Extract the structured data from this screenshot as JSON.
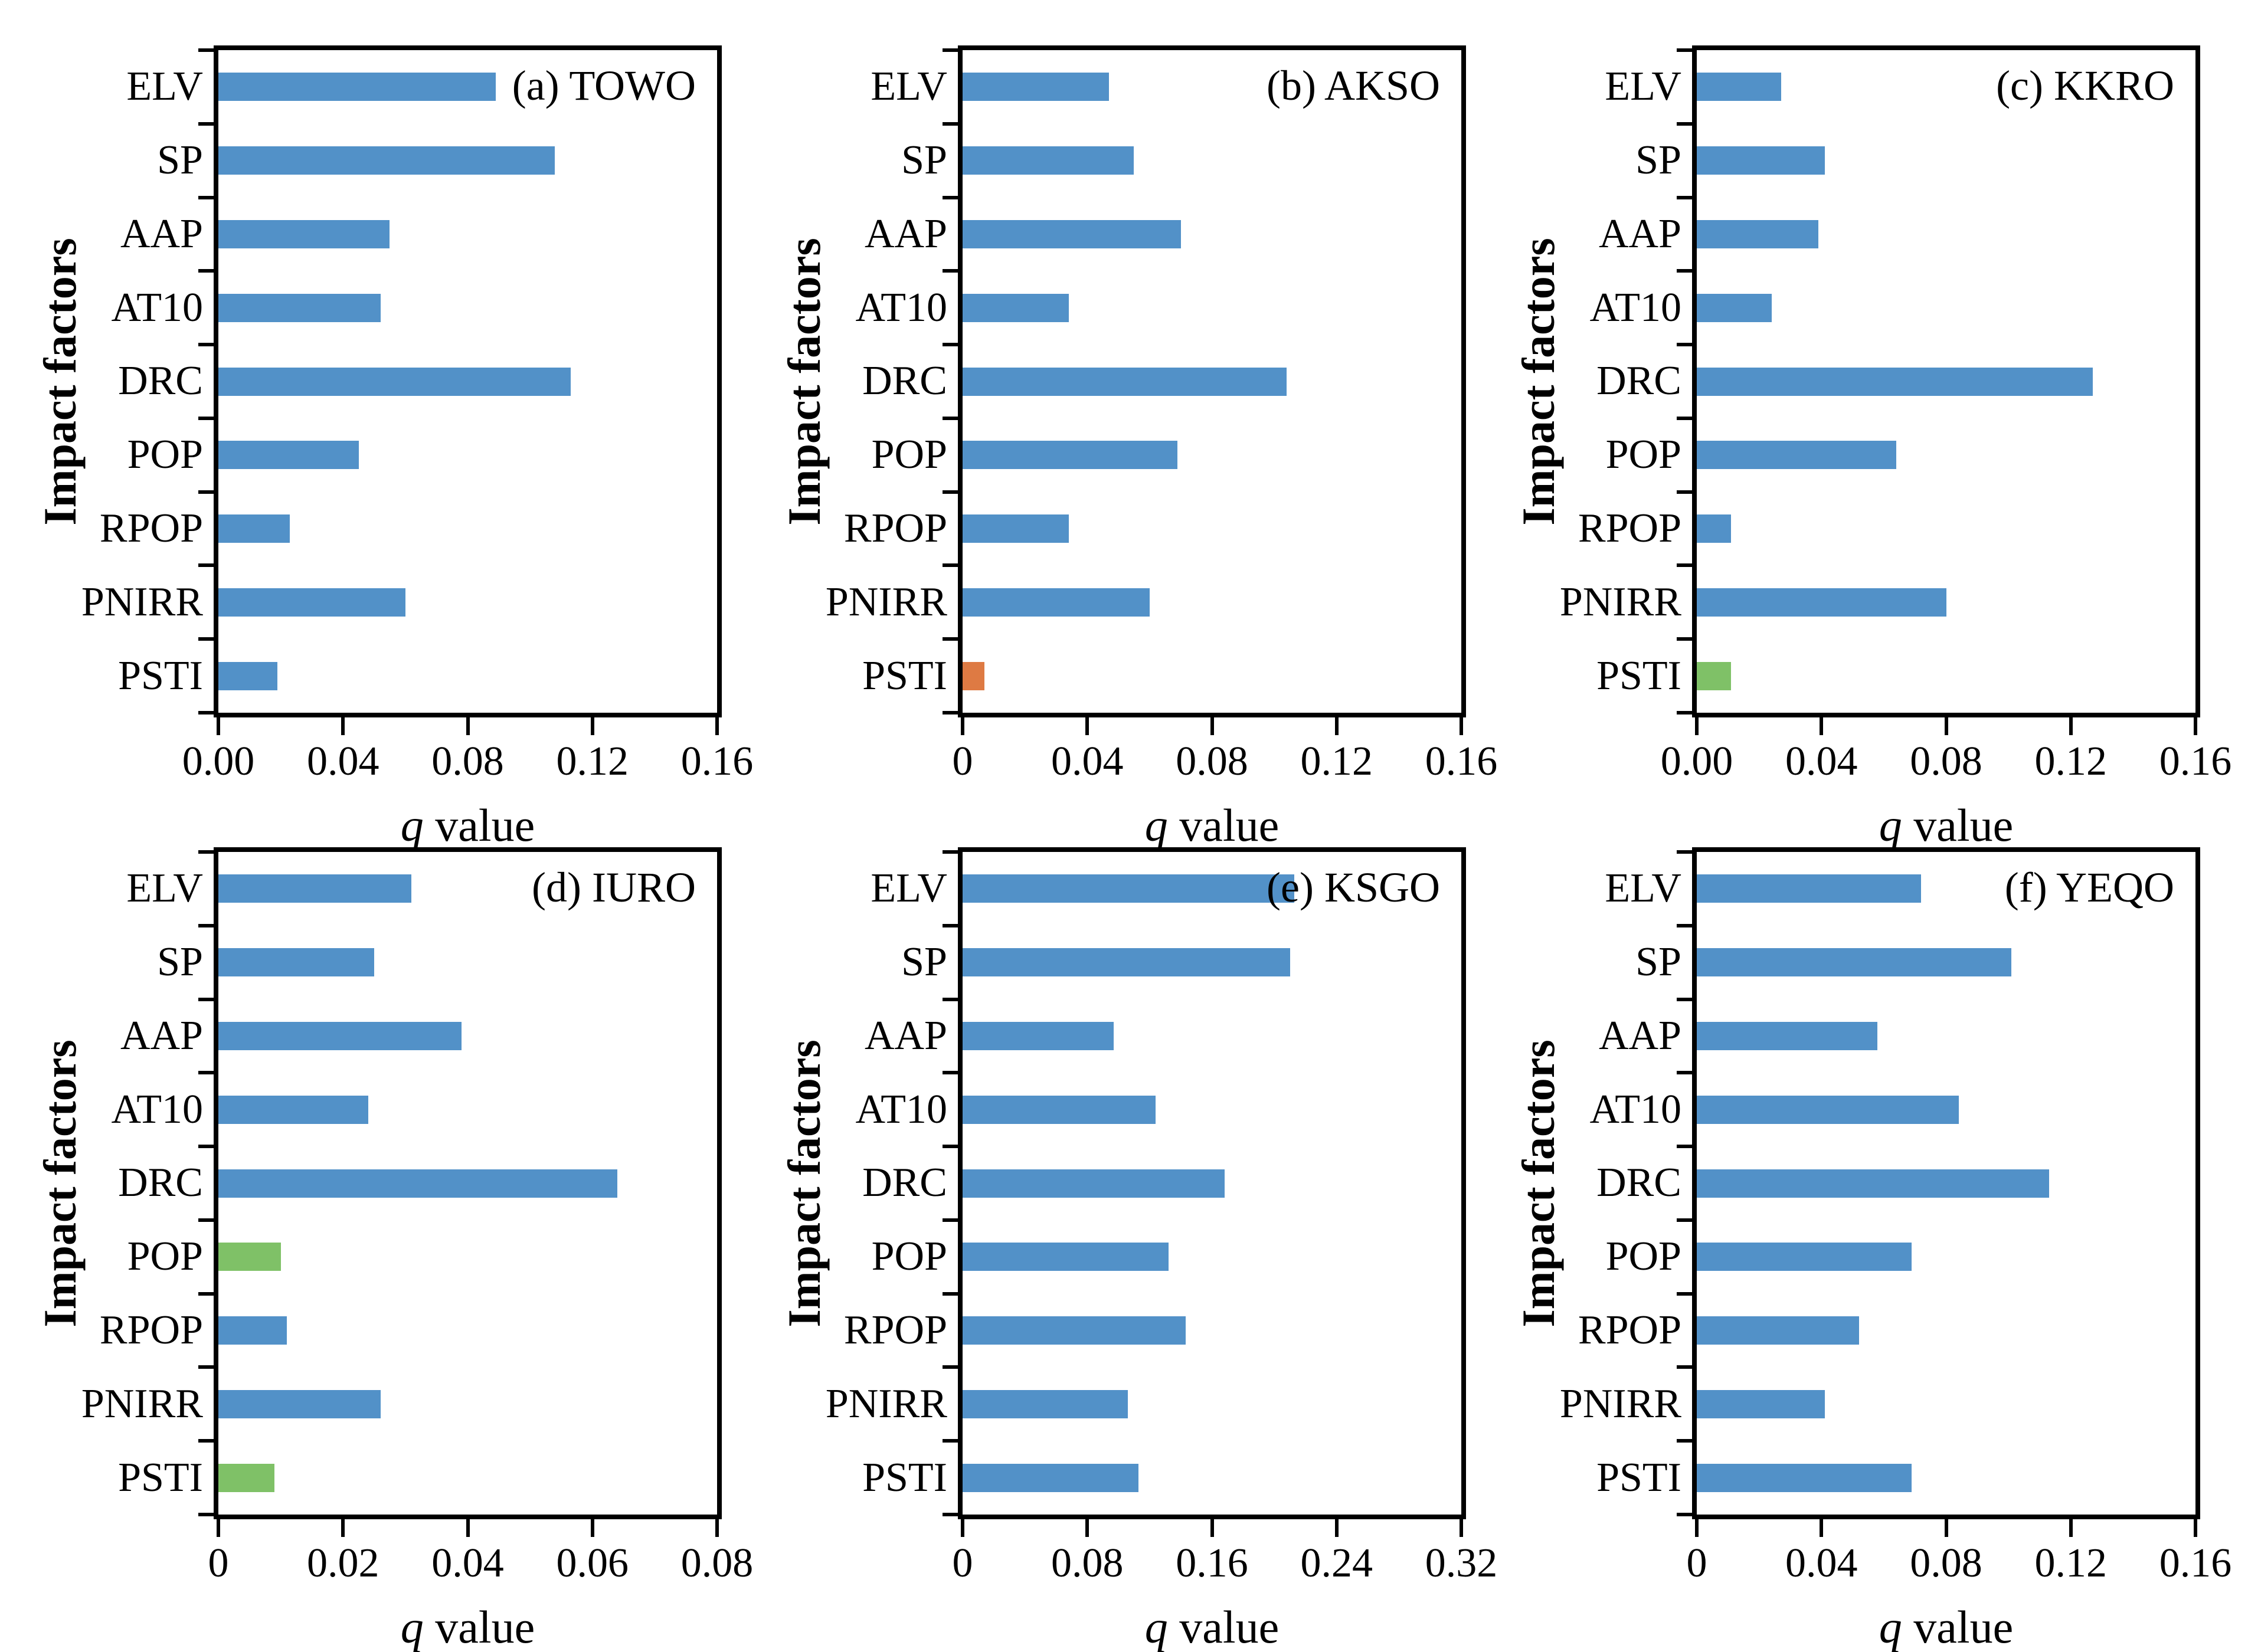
{
  "figure": {
    "background": "#ffffff",
    "y_axis_label": "Impact factors",
    "x_axis_label_italic": "q",
    "x_axis_label_rest": " value"
  },
  "colors": {
    "blue": "#5291c8",
    "orange": "#de7a43",
    "green": "#7fc167",
    "axis": "#000000",
    "text": "#000000"
  },
  "categories": [
    "ELV",
    "SP",
    "AAP",
    "AT10",
    "DRC",
    "POP",
    "RPOP",
    "PNIRR",
    "PSTI"
  ],
  "chart_data": [
    {
      "type": "bar",
      "orientation": "horizontal",
      "panel_letter": "(a)",
      "station": "TOWO",
      "annotation": "(a) TOWO",
      "xlabel": "q value",
      "ylabel": "Impact factors",
      "xlim": [
        0,
        0.16
      ],
      "xtick_labels": [
        "0.00",
        "0.04",
        "0.08",
        "0.12",
        "0.16"
      ],
      "categories": [
        "ELV",
        "SP",
        "AAP",
        "AT10",
        "DRC",
        "POP",
        "RPOP",
        "PNIRR",
        "PSTI"
      ],
      "values": [
        0.089,
        0.108,
        0.055,
        0.052,
        0.113,
        0.045,
        0.023,
        0.06,
        0.019
      ],
      "bar_colors": [
        "blue",
        "blue",
        "blue",
        "blue",
        "blue",
        "blue",
        "blue",
        "blue",
        "blue"
      ]
    },
    {
      "type": "bar",
      "orientation": "horizontal",
      "panel_letter": "(b)",
      "station": "AKSO",
      "annotation": "(b) AKSO",
      "xlabel": "q value",
      "ylabel": "Impact factors",
      "xlim": [
        0,
        0.16
      ],
      "xtick_labels": [
        "0",
        "0.04",
        "0.08",
        "0.12",
        "0.16"
      ],
      "categories": [
        "ELV",
        "SP",
        "AAP",
        "AT10",
        "DRC",
        "POP",
        "RPOP",
        "PNIRR",
        "PSTI"
      ],
      "values": [
        0.047,
        0.055,
        0.07,
        0.034,
        0.104,
        0.069,
        0.034,
        0.06,
        0.007
      ],
      "bar_colors": [
        "blue",
        "blue",
        "blue",
        "blue",
        "blue",
        "blue",
        "blue",
        "blue",
        "orange"
      ]
    },
    {
      "type": "bar",
      "orientation": "horizontal",
      "panel_letter": "(c)",
      "station": "KKRO",
      "annotation": "(c) KKRO",
      "xlabel": "q value",
      "ylabel": "Impact factors",
      "xlim": [
        0,
        0.16
      ],
      "xtick_labels": [
        "0.00",
        "0.04",
        "0.08",
        "0.12",
        "0.16"
      ],
      "categories": [
        "ELV",
        "SP",
        "AAP",
        "AT10",
        "DRC",
        "POP",
        "RPOP",
        "PNIRR",
        "PSTI"
      ],
      "values": [
        0.027,
        0.041,
        0.039,
        0.024,
        0.127,
        0.064,
        0.011,
        0.08,
        0.011
      ],
      "bar_colors": [
        "blue",
        "blue",
        "blue",
        "blue",
        "blue",
        "blue",
        "blue",
        "blue",
        "green"
      ]
    },
    {
      "type": "bar",
      "orientation": "horizontal",
      "panel_letter": "(d)",
      "station": "IURO",
      "annotation": "(d) IURO",
      "xlabel": "q value",
      "ylabel": "Impact factors",
      "xlim": [
        0,
        0.08
      ],
      "xtick_labels": [
        "0",
        "0.02",
        "0.04",
        "0.06",
        "0.08"
      ],
      "categories": [
        "ELV",
        "SP",
        "AAP",
        "AT10",
        "DRC",
        "POP",
        "RPOP",
        "PNIRR",
        "PSTI"
      ],
      "values": [
        0.031,
        0.025,
        0.039,
        0.024,
        0.064,
        0.01,
        0.011,
        0.026,
        0.009
      ],
      "bar_colors": [
        "blue",
        "blue",
        "blue",
        "blue",
        "blue",
        "green",
        "blue",
        "blue",
        "green"
      ]
    },
    {
      "type": "bar",
      "orientation": "horizontal",
      "panel_letter": "(e)",
      "station": "KSGO",
      "annotation": "(e) KSGO",
      "xlabel": "q value",
      "ylabel": "Impact factors",
      "xlim": [
        0,
        0.32
      ],
      "xtick_labels": [
        "0",
        "0.08",
        "0.16",
        "0.24",
        "0.32"
      ],
      "categories": [
        "ELV",
        "SP",
        "AAP",
        "AT10",
        "DRC",
        "POP",
        "RPOP",
        "PNIRR",
        "PSTI"
      ],
      "values": [
        0.213,
        0.21,
        0.097,
        0.124,
        0.168,
        0.132,
        0.143,
        0.106,
        0.113
      ],
      "bar_colors": [
        "blue",
        "blue",
        "blue",
        "blue",
        "blue",
        "blue",
        "blue",
        "blue",
        "blue"
      ]
    },
    {
      "type": "bar",
      "orientation": "horizontal",
      "panel_letter": "(f)",
      "station": "YEQO",
      "annotation": "(f) YEQO",
      "xlabel": "q value",
      "ylabel": "Impact factors",
      "xlim": [
        0,
        0.16
      ],
      "xtick_labels": [
        "0",
        "0.04",
        "0.08",
        "0.12",
        "0.16"
      ],
      "categories": [
        "ELV",
        "SP",
        "AAP",
        "AT10",
        "DRC",
        "POP",
        "RPOP",
        "PNIRR",
        "PSTI"
      ],
      "values": [
        0.072,
        0.101,
        0.058,
        0.084,
        0.113,
        0.069,
        0.052,
        0.041,
        0.069
      ],
      "bar_colors": [
        "blue",
        "blue",
        "blue",
        "blue",
        "blue",
        "blue",
        "blue",
        "blue",
        "blue"
      ]
    }
  ]
}
